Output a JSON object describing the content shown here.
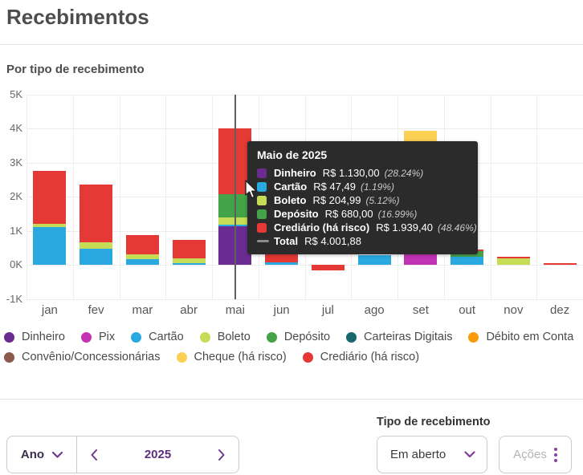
{
  "header": {
    "title": "Recebimentos",
    "section_title": "Por tipo de recebimento"
  },
  "colors": {
    "Dinheiro": "#6B2C91",
    "Pix": "#C233B4",
    "Cartão": "#29A9DF",
    "Boleto": "#C6DB56",
    "Depósito": "#44A248",
    "Carteiras Digitais": "#17676D",
    "Débito em Conta": "#F99B0C",
    "Convênio/Concessionárias": "#8A5A4B",
    "Cheque (há risco)": "#FBD054",
    "Crediário (há risco)": "#E53935",
    "Total": "#8C8C8C"
  },
  "chart_data": {
    "type": "bar",
    "variant": "stacked",
    "title": "Por tipo de recebimento",
    "unit": "R$",
    "ylim": [
      -1000,
      5000
    ],
    "grid": true,
    "y_ticks": [
      {
        "label": "5K",
        "value": 5000
      },
      {
        "label": "4K",
        "value": 4000
      },
      {
        "label": "3K",
        "value": 3000
      },
      {
        "label": "2K",
        "value": 2000
      },
      {
        "label": "1K",
        "value": 1000
      },
      {
        "label": "0K",
        "value": 0
      },
      {
        "label": "-1K",
        "value": -1000
      }
    ],
    "categories": [
      "jan",
      "fev",
      "mar",
      "abr",
      "mai",
      "jun",
      "jul",
      "ago",
      "set",
      "out",
      "nov",
      "dez"
    ],
    "highlight_category": "mai",
    "stacks": [
      {
        "month": "jan",
        "segments": [
          {
            "name": "Cartão",
            "value": 1110
          },
          {
            "name": "Boleto",
            "value": 80
          },
          {
            "name": "Crediário (há risco)",
            "value": 1560
          }
        ]
      },
      {
        "month": "fev",
        "segments": [
          {
            "name": "Cartão",
            "value": 470
          },
          {
            "name": "Boleto",
            "value": 180
          },
          {
            "name": "Crediário (há risco)",
            "value": 1700
          }
        ]
      },
      {
        "month": "mar",
        "segments": [
          {
            "name": "Cartão",
            "value": 155
          },
          {
            "name": "Boleto",
            "value": 145
          },
          {
            "name": "Crediário (há risco)",
            "value": 560
          }
        ]
      },
      {
        "month": "abr",
        "segments": [
          {
            "name": "Cartão",
            "value": 55
          },
          {
            "name": "Boleto",
            "value": 140
          },
          {
            "name": "Crediário (há risco)",
            "value": 535
          }
        ]
      },
      {
        "month": "mai",
        "segments": [
          {
            "name": "Dinheiro",
            "value": 1130
          },
          {
            "name": "Cartão",
            "value": 47.49
          },
          {
            "name": "Boleto",
            "value": 204.99
          },
          {
            "name": "Depósito",
            "value": 680
          },
          {
            "name": "Crediário (há risco)",
            "value": 1939.4
          }
        ]
      },
      {
        "month": "jun",
        "segments": [
          {
            "name": "Cartão",
            "value": 60
          },
          {
            "name": "Crediário (há risco)",
            "value": 330
          }
        ]
      },
      {
        "month": "jul",
        "segments": [
          {
            "name": "Crediário (há risco)",
            "value": -160
          }
        ]
      },
      {
        "month": "ago",
        "segments": [
          {
            "name": "Cartão",
            "value": 275
          }
        ]
      },
      {
        "month": "set",
        "segments": [
          {
            "name": "Pix",
            "value": 340
          },
          {
            "name": "Cheque (há risco)",
            "value": 3580
          }
        ]
      },
      {
        "month": "out",
        "segments": [
          {
            "name": "Cartão",
            "value": 225
          },
          {
            "name": "Depósito",
            "value": 165
          },
          {
            "name": "Crediário (há risco)",
            "value": 50
          }
        ]
      },
      {
        "month": "nov",
        "segments": [
          {
            "name": "Boleto",
            "value": 180
          },
          {
            "name": "Crediário (há risco)",
            "value": 55
          }
        ]
      },
      {
        "month": "dez",
        "segments": [
          {
            "name": "Crediário (há risco)",
            "value": 55
          }
        ]
      }
    ],
    "legend": [
      "Dinheiro",
      "Pix",
      "Cartão",
      "Boleto",
      "Depósito",
      "Carteiras Digitais",
      "Débito em Conta",
      "Convênio/Concessionárias",
      "Cheque (há risco)",
      "Crediário (há risco)"
    ],
    "legend_position": "bottom"
  },
  "tooltip": {
    "title": "Maio de 2025",
    "rows": [
      {
        "label": "Dinheiro",
        "value": "R$ 1.130,00",
        "pct": "(28.24%)"
      },
      {
        "label": "Cartão",
        "value": "R$ 47,49",
        "pct": "(1.19%)"
      },
      {
        "label": "Boleto",
        "value": "R$ 204,99",
        "pct": "(5.12%)"
      },
      {
        "label": "Depósito",
        "value": "R$ 680,00",
        "pct": "(16.99%)"
      },
      {
        "label": "Crediário (há risco)",
        "value": "R$ 1.939,40",
        "pct": "(48.46%)"
      }
    ],
    "total": {
      "label": "Total",
      "value": "R$ 4.001,88"
    }
  },
  "footer": {
    "period_label": "Ano",
    "year": "2025",
    "filter_label": "Tipo de recebimento",
    "filter_value": "Em aberto",
    "actions_label": "Ações"
  }
}
